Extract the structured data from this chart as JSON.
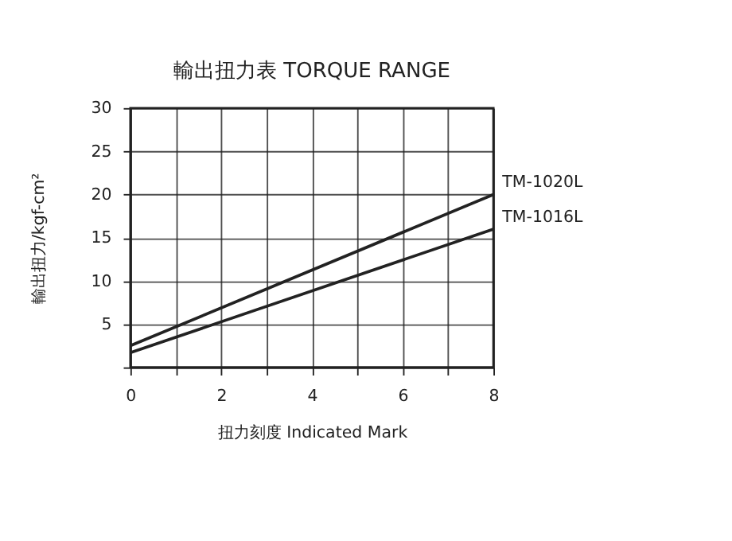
{
  "chart_data": {
    "type": "line",
    "title": "輸出扭力表  TORQUE RANGE",
    "xlabel": "扭力刻度 Indicated Mark",
    "ylabel": "輸出扭力/kgf-cm²",
    "x": [
      0,
      8
    ],
    "series": [
      {
        "name": "TM-1020L",
        "color": "#222222",
        "values": [
          2.5,
          20
        ]
      },
      {
        "name": "TM-1016L",
        "color": "#222222",
        "values": [
          1.7,
          16
        ]
      }
    ],
    "xlim": [
      0,
      8
    ],
    "xticks": [
      0,
      {
        "value": 1,
        "label": null
      },
      2,
      {
        "value": 3,
        "label": null
      },
      4,
      {
        "value": 5,
        "label": null
      },
      6,
      {
        "value": 7,
        "label": null
      },
      8
    ],
    "ylim": [
      0,
      30
    ],
    "yticks": [
      {
        "value": 0,
        "label": null
      },
      5,
      10,
      15,
      20,
      25,
      30
    ],
    "grid": true,
    "legend": false,
    "marker": "none",
    "line_style": "solid"
  }
}
